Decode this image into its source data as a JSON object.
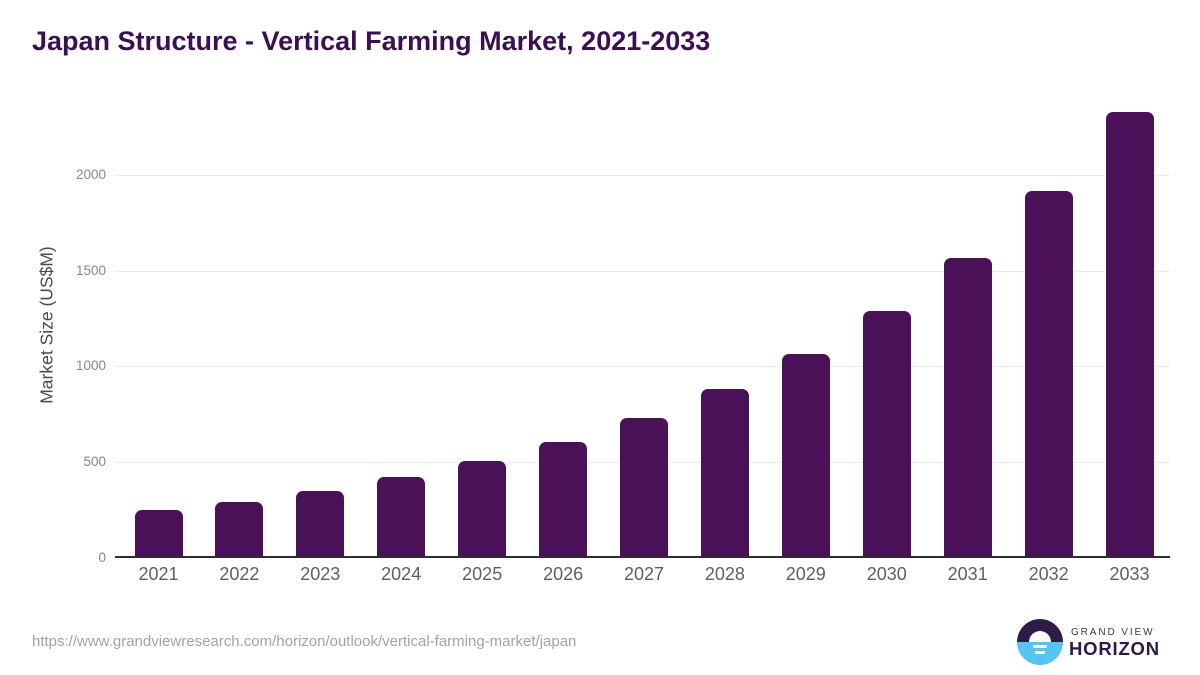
{
  "header": {
    "title": "Japan Structure - Vertical Farming Market, 2021-2033"
  },
  "chart_data": {
    "type": "bar",
    "title": "Japan Structure - Vertical Farming Market, 2021-2033",
    "categories": [
      "2021",
      "2022",
      "2023",
      "2024",
      "2025",
      "2026",
      "2027",
      "2028",
      "2029",
      "2030",
      "2031",
      "2032",
      "2033"
    ],
    "values": [
      250,
      294,
      351,
      421,
      506,
      603,
      729,
      880,
      1065,
      1290,
      1565,
      1915,
      2330
    ],
    "xlabel": "",
    "ylabel": "Market Size (US$M)",
    "yticks": [
      0,
      500,
      1000,
      1500,
      2000
    ],
    "ylim": [
      0,
      2390
    ],
    "grid": true,
    "legend": "none",
    "bar_color": "#4a1158"
  },
  "footer": {
    "source_url": "https://www.grandviewresearch.com/horizon/outlook/vertical-farming-market/japan",
    "logo": {
      "brand_top": "GRAND VIEW",
      "brand_bottom": "HORIZON"
    }
  },
  "colors": {
    "title": "#3a1053",
    "bar": "#4a1158",
    "gridline": "#e9eaeb",
    "axis_line": "#2d2d2f",
    "x_labels": "#5e5f61",
    "y_ticks": "#86888b",
    "y_axis_title": "#4b4b4d",
    "source_url": "#a2a3a5",
    "brand_purple": "#2e1c46",
    "brand_blue": "#56c5f0",
    "background": "#ffffff"
  }
}
